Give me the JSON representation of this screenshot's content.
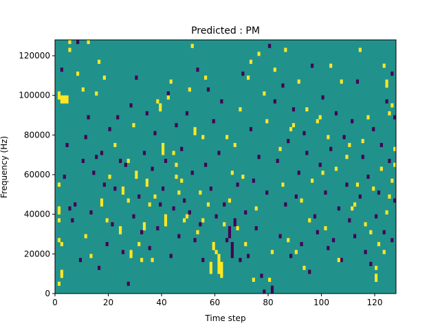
{
  "chart_data": {
    "type": "heatmap",
    "title": "Predicted : PM",
    "xlabel": "Time step",
    "ylabel": "Frequency (Hz)",
    "xlim": [
      0,
      128
    ],
    "ylim": [
      0,
      128000
    ],
    "x_ticks": [
      0,
      20,
      40,
      60,
      80,
      100,
      120
    ],
    "y_ticks": [
      0,
      20000,
      40000,
      60000,
      80000,
      100000,
      120000
    ],
    "y_tick_labels": [
      "0",
      "20000",
      "40000",
      "60000",
      "80000",
      "100000",
      "120000"
    ],
    "grid": false,
    "legend": "none",
    "n_time_steps": 128,
    "n_freq_bins": 64,
    "bin_hz": 2000,
    "colors": {
      "background": "#21918c",
      "low": "#440154",
      "high": "#fde725"
    },
    "cells_high": [
      [
        1,
        2
      ],
      [
        1,
        13
      ],
      [
        1,
        18
      ],
      [
        1,
        20
      ],
      [
        1,
        21
      ],
      [
        1,
        27
      ],
      [
        1,
        49
      ],
      [
        1,
        50
      ],
      [
        2,
        4
      ],
      [
        2,
        5
      ],
      [
        2,
        12
      ],
      [
        2,
        49
      ],
      [
        2,
        48
      ],
      [
        3,
        48
      ],
      [
        3,
        49
      ],
      [
        4,
        48
      ],
      [
        4,
        49
      ],
      [
        5,
        63
      ],
      [
        5,
        61
      ],
      [
        8,
        55
      ],
      [
        10,
        51
      ],
      [
        11,
        14
      ],
      [
        12,
        63
      ],
      [
        13,
        9
      ],
      [
        15,
        50
      ],
      [
        16,
        58
      ],
      [
        17,
        22
      ],
      [
        17,
        23
      ],
      [
        18,
        54
      ],
      [
        19,
        18
      ],
      [
        20,
        29
      ],
      [
        22,
        37
      ],
      [
        24,
        15
      ],
      [
        24,
        16
      ],
      [
        25,
        25
      ],
      [
        25,
        26
      ],
      [
        27,
        23
      ],
      [
        27,
        33
      ],
      [
        28,
        9
      ],
      [
        28,
        10
      ],
      [
        29,
        42
      ],
      [
        30,
        29
      ],
      [
        30,
        30
      ],
      [
        31,
        12
      ],
      [
        32,
        8
      ],
      [
        33,
        16
      ],
      [
        33,
        17
      ],
      [
        34,
        27
      ],
      [
        34,
        28
      ],
      [
        35,
        22
      ],
      [
        36,
        8
      ],
      [
        37,
        24
      ],
      [
        38,
        48
      ],
      [
        39,
        46
      ],
      [
        39,
        47
      ],
      [
        40,
        35
      ],
      [
        40,
        36
      ],
      [
        40,
        37
      ],
      [
        41,
        17
      ],
      [
        41,
        18
      ],
      [
        41,
        19
      ],
      [
        42,
        49
      ],
      [
        43,
        53
      ],
      [
        44,
        35
      ],
      [
        45,
        29
      ],
      [
        45,
        32
      ],
      [
        46,
        25
      ],
      [
        47,
        28
      ],
      [
        48,
        18
      ],
      [
        49,
        19
      ],
      [
        50,
        51
      ],
      [
        51,
        62
      ],
      [
        52,
        40
      ],
      [
        52,
        41
      ],
      [
        53,
        15
      ],
      [
        54,
        25
      ],
      [
        55,
        18
      ],
      [
        55,
        39
      ],
      [
        56,
        54
      ],
      [
        57,
        22
      ],
      [
        58,
        5
      ],
      [
        58,
        6
      ],
      [
        58,
        7
      ],
      [
        59,
        11
      ],
      [
        59,
        12
      ],
      [
        60,
        10
      ],
      [
        61,
        5
      ],
      [
        61,
        6
      ],
      [
        61,
        7
      ],
      [
        61,
        8
      ],
      [
        61,
        9
      ],
      [
        62,
        4
      ],
      [
        62,
        5
      ],
      [
        62,
        6
      ],
      [
        62,
        7
      ],
      [
        63,
        17
      ],
      [
        64,
        39
      ],
      [
        65,
        23
      ],
      [
        66,
        30
      ],
      [
        67,
        37
      ],
      [
        68,
        16
      ],
      [
        69,
        46
      ],
      [
        70,
        29
      ],
      [
        71,
        12
      ],
      [
        72,
        54
      ],
      [
        73,
        58
      ],
      [
        74,
        3
      ],
      [
        75,
        21
      ],
      [
        76,
        60
      ],
      [
        78,
        50
      ],
      [
        79,
        43
      ],
      [
        80,
        3
      ],
      [
        81,
        10
      ],
      [
        82,
        56
      ],
      [
        84,
        36
      ],
      [
        85,
        27
      ],
      [
        86,
        61
      ],
      [
        87,
        13
      ],
      [
        88,
        41
      ],
      [
        89,
        42
      ],
      [
        90,
        10
      ],
      [
        91,
        53
      ],
      [
        92,
        23
      ],
      [
        93,
        6
      ],
      [
        94,
        46
      ],
      [
        95,
        18
      ],
      [
        96,
        28
      ],
      [
        98,
        43
      ],
      [
        99,
        44
      ],
      [
        100,
        30
      ],
      [
        101,
        16
      ],
      [
        102,
        39
      ],
      [
        103,
        57
      ],
      [
        105,
        31
      ],
      [
        106,
        8
      ],
      [
        107,
        53
      ],
      [
        109,
        34
      ],
      [
        110,
        37
      ],
      [
        111,
        21
      ],
      [
        112,
        22
      ],
      [
        113,
        27
      ],
      [
        114,
        61
      ],
      [
        115,
        38
      ],
      [
        116,
        17
      ],
      [
        117,
        44
      ],
      [
        118,
        15
      ],
      [
        119,
        26
      ],
      [
        120,
        3
      ],
      [
        120,
        4
      ],
      [
        120,
        6
      ],
      [
        121,
        12
      ],
      [
        122,
        31
      ],
      [
        123,
        57
      ],
      [
        124,
        52
      ],
      [
        124,
        53
      ],
      [
        125,
        45
      ],
      [
        126,
        47
      ],
      [
        127,
        36
      ],
      [
        127,
        32
      ],
      [
        126,
        28
      ],
      [
        125,
        24
      ],
      [
        124,
        20
      ],
      [
        123,
        10
      ]
    ],
    "cells_low": [
      [
        2,
        56
      ],
      [
        3,
        29
      ],
      [
        4,
        37
      ],
      [
        5,
        21
      ],
      [
        6,
        18
      ],
      [
        7,
        22
      ],
      [
        8,
        63
      ],
      [
        9,
        8
      ],
      [
        10,
        33
      ],
      [
        11,
        39
      ],
      [
        12,
        44
      ],
      [
        13,
        20
      ],
      [
        14,
        30
      ],
      [
        15,
        34
      ],
      [
        16,
        6
      ],
      [
        17,
        35
      ],
      [
        18,
        27
      ],
      [
        19,
        12
      ],
      [
        20,
        41
      ],
      [
        21,
        17
      ],
      [
        22,
        26
      ],
      [
        23,
        44
      ],
      [
        24,
        33
      ],
      [
        25,
        10
      ],
      [
        26,
        32
      ],
      [
        27,
        2
      ],
      [
        28,
        47
      ],
      [
        29,
        19
      ],
      [
        30,
        54
      ],
      [
        31,
        24
      ],
      [
        32,
        15
      ],
      [
        33,
        35
      ],
      [
        34,
        45
      ],
      [
        35,
        11
      ],
      [
        36,
        31
      ],
      [
        37,
        40
      ],
      [
        38,
        16
      ],
      [
        39,
        22
      ],
      [
        40,
        26
      ],
      [
        41,
        33
      ],
      [
        42,
        50
      ],
      [
        43,
        9
      ],
      [
        44,
        21
      ],
      [
        45,
        42
      ],
      [
        46,
        14
      ],
      [
        47,
        36
      ],
      [
        48,
        23
      ],
      [
        49,
        45
      ],
      [
        50,
        20
      ],
      [
        51,
        30
      ],
      [
        52,
        13
      ],
      [
        53,
        56
      ],
      [
        54,
        17
      ],
      [
        55,
        8
      ],
      [
        56,
        32
      ],
      [
        57,
        51
      ],
      [
        58,
        26
      ],
      [
        59,
        43
      ],
      [
        60,
        19
      ],
      [
        61,
        35
      ],
      [
        62,
        48
      ],
      [
        63,
        22
      ],
      [
        64,
        13
      ],
      [
        65,
        14
      ],
      [
        65,
        15
      ],
      [
        65,
        16
      ],
      [
        66,
        9
      ],
      [
        66,
        10
      ],
      [
        66,
        11
      ],
      [
        66,
        12
      ],
      [
        67,
        17
      ],
      [
        67,
        18
      ],
      [
        68,
        27
      ],
      [
        69,
        8
      ],
      [
        70,
        55
      ],
      [
        71,
        20
      ],
      [
        72,
        9
      ],
      [
        73,
        41
      ],
      [
        74,
        28
      ],
      [
        75,
        16
      ],
      [
        76,
        34
      ],
      [
        77,
        4
      ],
      [
        78,
        0
      ],
      [
        79,
        25
      ],
      [
        80,
        62
      ],
      [
        81,
        0
      ],
      [
        81,
        1
      ],
      [
        82,
        48
      ],
      [
        83,
        33
      ],
      [
        84,
        14
      ],
      [
        85,
        52
      ],
      [
        86,
        22
      ],
      [
        87,
        38
      ],
      [
        88,
        9
      ],
      [
        89,
        46
      ],
      [
        90,
        24
      ],
      [
        91,
        30
      ],
      [
        92,
        12
      ],
      [
        93,
        40
      ],
      [
        94,
        35
      ],
      [
        95,
        5
      ],
      [
        96,
        57
      ],
      [
        97,
        19
      ],
      [
        98,
        15
      ],
      [
        99,
        32
      ],
      [
        100,
        49
      ],
      [
        101,
        25
      ],
      [
        102,
        11
      ],
      [
        103,
        36
      ],
      [
        104,
        13
      ],
      [
        105,
        45
      ],
      [
        106,
        21
      ],
      [
        107,
        8
      ],
      [
        108,
        39
      ],
      [
        109,
        27
      ],
      [
        110,
        18
      ],
      [
        111,
        43
      ],
      [
        112,
        14
      ],
      [
        113,
        53
      ],
      [
        114,
        24
      ],
      [
        115,
        34
      ],
      [
        116,
        10
      ],
      [
        117,
        29
      ],
      [
        118,
        7
      ],
      [
        119,
        41
      ],
      [
        120,
        19
      ],
      [
        121,
        25
      ],
      [
        122,
        37
      ],
      [
        123,
        15
      ],
      [
        124,
        48
      ],
      [
        125,
        33
      ],
      [
        126,
        13
      ],
      [
        127,
        23
      ],
      [
        127,
        44
      ],
      [
        126,
        55
      ]
    ]
  }
}
